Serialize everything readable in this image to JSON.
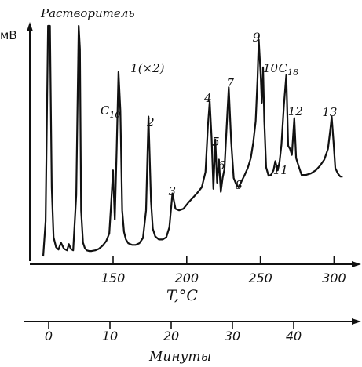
{
  "chart_data": {
    "type": "line",
    "title": "",
    "ylabel": "мВ",
    "temperature_axis": {
      "label": "T,°C",
      "range": [
        93,
        320
      ],
      "ticks": [
        150,
        200,
        250,
        300
      ]
    },
    "time_axis": {
      "label": "Минуты",
      "range": [
        -6,
        48
      ],
      "ticks": [
        0,
        10,
        20,
        30,
        40
      ]
    },
    "peak_labels": [
      {
        "text": "Растворитель",
        "time": 0
      },
      {
        "text": "C10",
        "time": 10.5
      },
      {
        "text": "1(×2)",
        "time": 12.2
      },
      {
        "text": "2",
        "time": 16.3
      },
      {
        "text": "3",
        "time": 20.2
      },
      {
        "text": "4",
        "time": 26.3
      },
      {
        "text": "5",
        "time": 27.2
      },
      {
        "text": "6",
        "time": 28.1
      },
      {
        "text": "7",
        "time": 29.4
      },
      {
        "text": "8",
        "time": 31.2
      },
      {
        "text": "9",
        "time": 34.3
      },
      {
        "text": "10",
        "time": 35.0
      },
      {
        "text": "11",
        "time": 37.4
      },
      {
        "text": "C18",
        "time": 38.8
      },
      {
        "text": "12",
        "time": 40.1
      },
      {
        "text": "13",
        "time": 46.2
      }
    ],
    "trace": {
      "time": [
        -0.9,
        -0.5,
        -0.1,
        0.2,
        0.5,
        0.8,
        1.2,
        1.6,
        2.0,
        2.5,
        3.0,
        3.3,
        3.6,
        4.0,
        4.5,
        4.9,
        5.1,
        5.3,
        5.6,
        5.9,
        6.2,
        6.6,
        7.0,
        7.6,
        8.2,
        8.8,
        9.4,
        9.9,
        10.2,
        10.5,
        10.8,
        11.1,
        11.4,
        11.7,
        12.0,
        12.3,
        12.6,
        13.0,
        13.6,
        14.2,
        14.8,
        15.4,
        15.9,
        16.3,
        16.7,
        17.0,
        17.4,
        18.0,
        18.6,
        19.2,
        19.7,
        20.2,
        20.7,
        21.3,
        22.0,
        22.8,
        23.5,
        24.3,
        25.0,
        25.6,
        26.0,
        26.3,
        26.6,
        26.9,
        27.2,
        27.5,
        27.8,
        28.1,
        28.4,
        28.7,
        29.0,
        29.4,
        29.8,
        30.2,
        30.6,
        31.0,
        31.5,
        32.0,
        32.5,
        33.0,
        33.4,
        33.8,
        34.1,
        34.3,
        34.6,
        34.8,
        35.0,
        35.2,
        35.5,
        35.9,
        36.3,
        36.7,
        37.0,
        37.4,
        37.7,
        38.0,
        38.4,
        38.8,
        39.1,
        39.4,
        39.7,
        40.1,
        40.4,
        40.8,
        41.3,
        42.0,
        42.8,
        43.6,
        44.3,
        45.0,
        45.6,
        46.0,
        46.2,
        46.5,
        46.8,
        47.2,
        47.6,
        48.0
      ],
      "signal": [
        0,
        46,
        300,
        300,
        90,
        25,
        12,
        9,
        18,
        10,
        8,
        16,
        10,
        8,
        80,
        300,
        270,
        60,
        18,
        11,
        8,
        7,
        7,
        8,
        10,
        14,
        20,
        30,
        70,
        112,
        48,
        140,
        240,
        190,
        60,
        32,
        22,
        17,
        15,
        15,
        17,
        24,
        60,
        182,
        72,
        36,
        26,
        22,
        22,
        25,
        38,
        82,
        62,
        60,
        62,
        70,
        76,
        83,
        90,
        110,
        170,
        202,
        154,
        88,
        152,
        96,
        126,
        84,
        102,
        114,
        160,
        220,
        150,
        102,
        94,
        90,
        98,
        106,
        115,
        128,
        148,
        176,
        232,
        282,
        238,
        200,
        246,
        176,
        116,
        105,
        106,
        112,
        124,
        112,
        124,
        145,
        196,
        236,
        144,
        140,
        132,
        180,
        128,
        118,
        106,
        106,
        108,
        112,
        118,
        126,
        140,
        166,
        182,
        150,
        115,
        108,
        104,
        104
      ]
    }
  }
}
